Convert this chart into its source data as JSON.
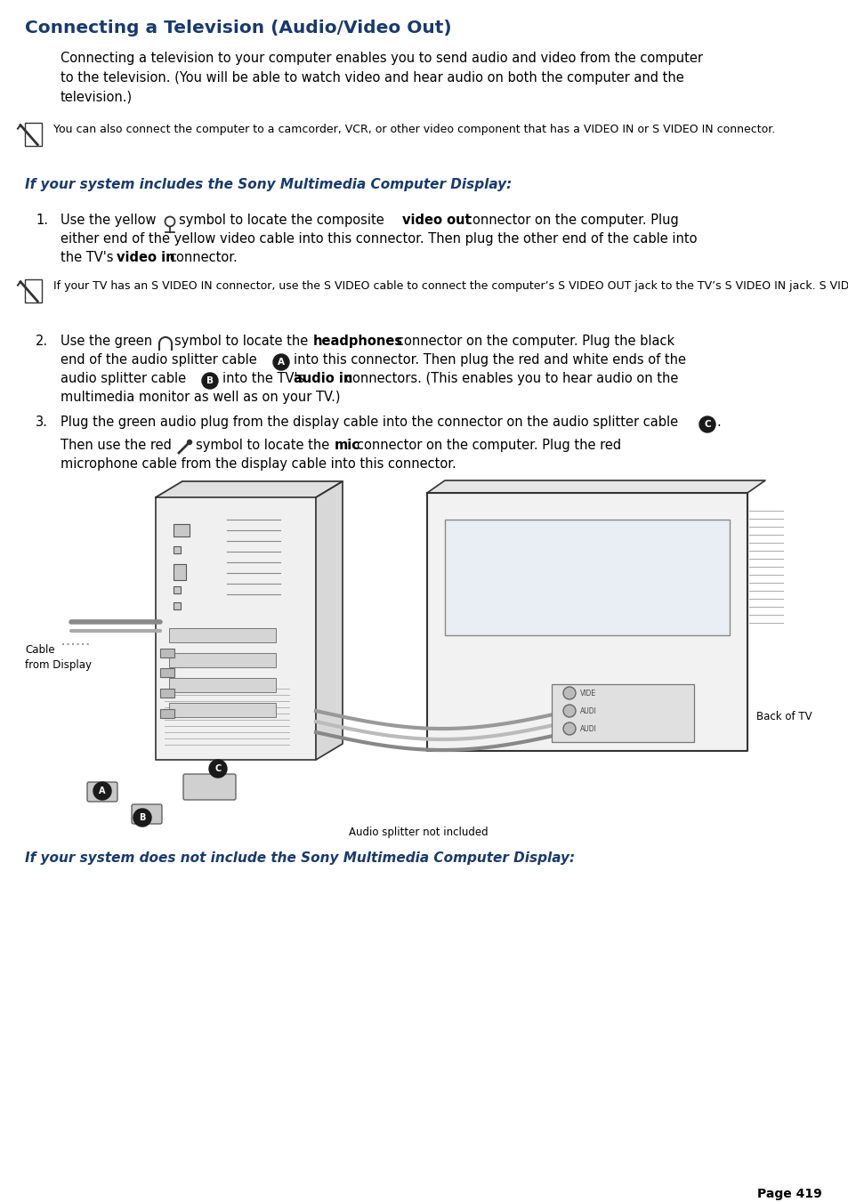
{
  "title": "Connecting a Television (Audio/Video Out)",
  "title_color": "#1a3a6b",
  "background_color": "#ffffff",
  "page_number": "Page 419",
  "body_text_color": "#000000",
  "italic_heading_color": "#1a3a6b",
  "label_color": "#4a7ab5",
  "section1_heading": "If your system includes the Sony Multimedia Computer Display:",
  "section2_heading": "If your system does not include the Sony Multimedia Computer Display:",
  "note1": "You can also connect the computer to a camcorder, VCR, or other video component that has a VIDEO IN or S VIDEO IN connector.",
  "note2": "If your TV has an S VIDEO IN connector, use the S VIDEO cable to connect the computer’s S VIDEO OUT jack to the TV’s S VIDEO IN jack. S VIDEO provides a better picture than a conventional video connection.",
  "image_label1": "Cable\nfrom Display",
  "image_label2": "Back of TV",
  "image_label3": "Audio splitter not included"
}
